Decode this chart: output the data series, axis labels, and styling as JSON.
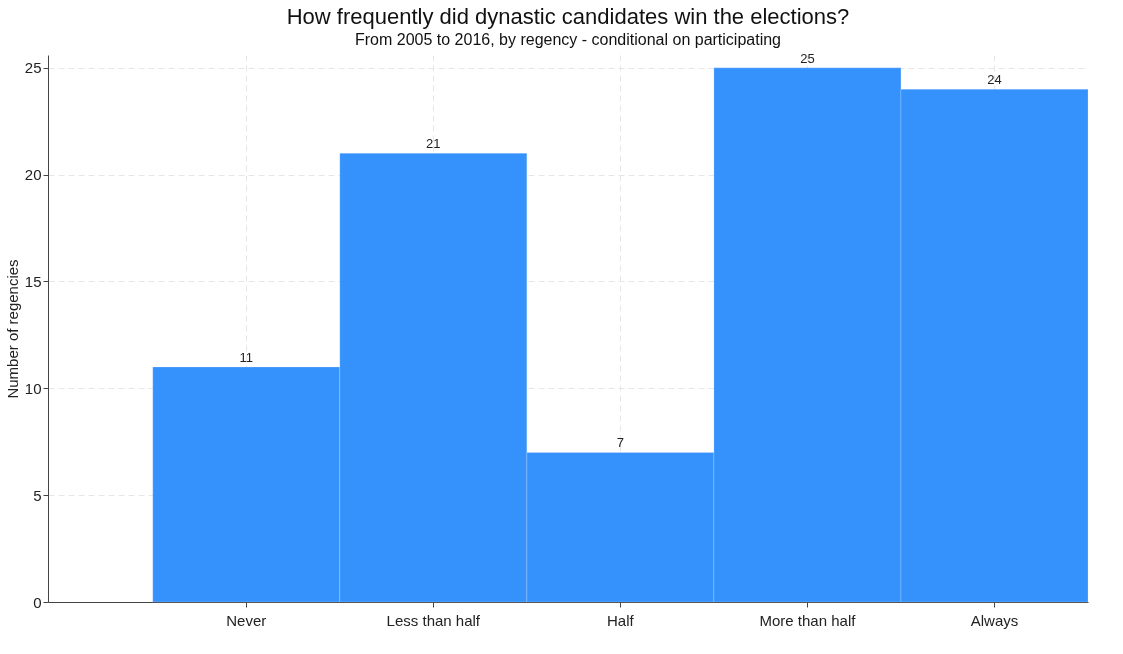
{
  "chart_data": {
    "type": "bar",
    "title": "How frequently did dynastic candidates win the elections?",
    "subtitle": "From 2005 to 2016, by regency - conditional on participating",
    "ylabel": "Number of regencies",
    "categories": [
      "Never",
      "Less than half",
      "Half",
      "More than half",
      "Always"
    ],
    "values": [
      11,
      21,
      7,
      25,
      24
    ],
    "color": "#3592fc",
    "ylim": [
      0,
      25.6
    ],
    "yticks": [
      0,
      5,
      10,
      15,
      20,
      25
    ],
    "grid": true,
    "data_labels": true
  }
}
